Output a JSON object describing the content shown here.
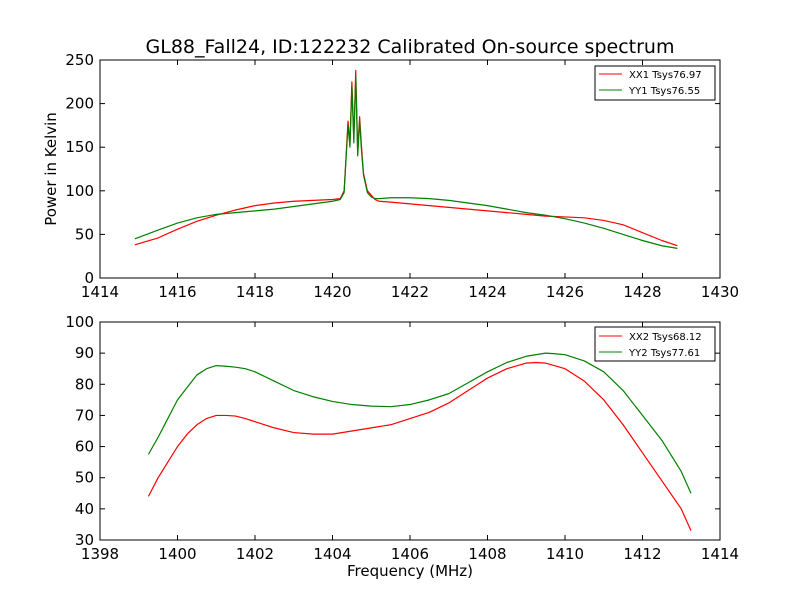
{
  "figure": {
    "title": "GL88_Fall24, ID:122232 Calibrated On-source spectrum"
  },
  "chart_data": [
    {
      "type": "line",
      "title": "GL88_Fall24, ID:122232 Calibrated On-source spectrum",
      "xlabel": "",
      "ylabel": "Power in Kelvin",
      "xlim": [
        1414,
        1430
      ],
      "ylim": [
        0,
        250
      ],
      "x_ticks": [
        1414,
        1416,
        1418,
        1420,
        1422,
        1424,
        1426,
        1428,
        1430
      ],
      "y_ticks": [
        0,
        50,
        100,
        150,
        200,
        250
      ],
      "grid": false,
      "legend": "top-right",
      "series": [
        {
          "name": "XX1 Tsys76.97",
          "color": "#ff0000",
          "x": [
            1414.9,
            1415.5,
            1416.0,
            1416.5,
            1417.0,
            1417.5,
            1418.0,
            1418.5,
            1419.0,
            1419.5,
            1420.0,
            1420.2,
            1420.3,
            1420.4,
            1420.45,
            1420.5,
            1420.55,
            1420.6,
            1420.65,
            1420.7,
            1420.75,
            1420.8,
            1420.85,
            1420.9,
            1421.0,
            1421.1,
            1421.2,
            1421.5,
            1422.0,
            1422.5,
            1423.0,
            1423.5,
            1424.0,
            1424.5,
            1425.0,
            1425.5,
            1426.0,
            1426.5,
            1427.0,
            1427.5,
            1428.0,
            1428.5,
            1428.9
          ],
          "y": [
            38,
            46,
            56,
            65,
            72,
            78,
            83,
            86,
            88,
            89,
            90,
            91,
            100,
            180,
            155,
            225,
            160,
            238,
            145,
            185,
            150,
            120,
            110,
            100,
            95,
            90,
            88,
            87,
            85,
            83,
            81,
            79,
            77,
            75,
            73,
            71,
            70,
            69,
            66,
            61,
            52,
            43,
            37
          ]
        },
        {
          "name": "YY1 Tsys76.55",
          "color": "#008000",
          "x": [
            1414.9,
            1415.5,
            1416.0,
            1416.5,
            1417.0,
            1417.5,
            1418.0,
            1418.5,
            1419.0,
            1419.5,
            1420.0,
            1420.2,
            1420.3,
            1420.4,
            1420.45,
            1420.5,
            1420.55,
            1420.6,
            1420.65,
            1420.7,
            1420.75,
            1420.8,
            1420.85,
            1420.9,
            1421.0,
            1421.1,
            1421.2,
            1421.5,
            1422.0,
            1422.5,
            1423.0,
            1423.5,
            1424.0,
            1424.5,
            1425.0,
            1425.5,
            1426.0,
            1426.5,
            1427.0,
            1427.5,
            1428.0,
            1428.5,
            1428.9
          ],
          "y": [
            45,
            55,
            63,
            69,
            73,
            75,
            77,
            79,
            82,
            85,
            88,
            90,
            98,
            175,
            150,
            220,
            155,
            232,
            140,
            180,
            145,
            118,
            108,
            98,
            93,
            91,
            91,
            92,
            92,
            91,
            89,
            86,
            83,
            79,
            75,
            72,
            68,
            63,
            57,
            50,
            43,
            37,
            34
          ]
        }
      ]
    },
    {
      "type": "line",
      "title": "",
      "xlabel": "Frequency (MHz)",
      "ylabel": "",
      "xlim": [
        1398,
        1414
      ],
      "ylim": [
        30,
        100
      ],
      "x_ticks": [
        1398,
        1400,
        1402,
        1404,
        1406,
        1408,
        1410,
        1412,
        1414
      ],
      "y_ticks": [
        30,
        40,
        50,
        60,
        70,
        80,
        90,
        100
      ],
      "grid": false,
      "legend": "top-right",
      "series": [
        {
          "name": "XX2 Tsys68.12",
          "color": "#ff0000",
          "x": [
            1399.25,
            1399.5,
            1399.75,
            1400.0,
            1400.25,
            1400.5,
            1400.75,
            1401.0,
            1401.25,
            1401.5,
            1401.75,
            1402.0,
            1402.5,
            1403.0,
            1403.5,
            1404.0,
            1404.5,
            1405.0,
            1405.5,
            1406.0,
            1406.5,
            1407.0,
            1407.5,
            1408.0,
            1408.5,
            1409.0,
            1409.25,
            1409.5,
            1410.0,
            1410.5,
            1411.0,
            1411.5,
            1412.0,
            1412.5,
            1413.0,
            1413.25
          ],
          "y": [
            44,
            50,
            55,
            60,
            64,
            67,
            69,
            70,
            70,
            69.8,
            69,
            68,
            66,
            64.5,
            64,
            64,
            65,
            66,
            67,
            69,
            71,
            74,
            78,
            82,
            85,
            86.8,
            87,
            86.8,
            85,
            81,
            75,
            67,
            58,
            49,
            40,
            33
          ]
        },
        {
          "name": "YY2 Tsys77.61",
          "color": "#008000",
          "x": [
            1399.25,
            1399.5,
            1399.75,
            1400.0,
            1400.25,
            1400.5,
            1400.75,
            1401.0,
            1401.25,
            1401.5,
            1401.75,
            1402.0,
            1402.5,
            1403.0,
            1403.5,
            1404.0,
            1404.5,
            1405.0,
            1405.5,
            1406.0,
            1406.5,
            1407.0,
            1407.5,
            1408.0,
            1408.5,
            1409.0,
            1409.5,
            1409.75,
            1410.0,
            1410.5,
            1411.0,
            1411.5,
            1412.0,
            1412.5,
            1413.0,
            1413.25
          ],
          "y": [
            57.5,
            63,
            69,
            75,
            79,
            83,
            85,
            86,
            85.8,
            85.5,
            85,
            84,
            81,
            78,
            76,
            74.5,
            73.5,
            73,
            72.8,
            73.5,
            75,
            77,
            80.5,
            84,
            87,
            89,
            90,
            89.8,
            89.5,
            87.5,
            84,
            78,
            70,
            62,
            52,
            45
          ]
        }
      ]
    }
  ]
}
